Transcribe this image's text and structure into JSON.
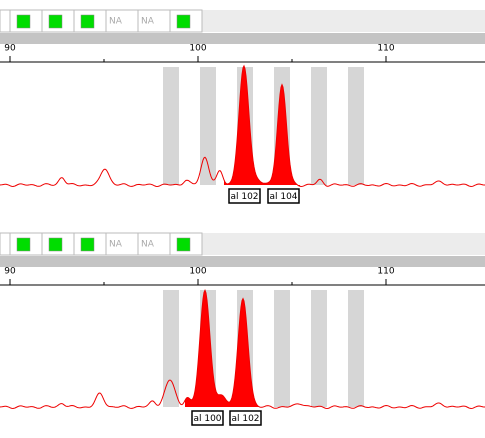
{
  "panels": [
    {
      "na_labels": [
        "NA",
        "NA"
      ],
      "ruler_ticks": [
        90,
        100,
        110
      ],
      "alleles": [
        "al 102",
        "al 104"
      ]
    },
    {
      "na_labels": [
        "NA",
        "NA"
      ],
      "ruler_ticks": [
        90,
        100,
        110
      ],
      "alleles": [
        "al 100",
        "al 102"
      ]
    }
  ]
}
